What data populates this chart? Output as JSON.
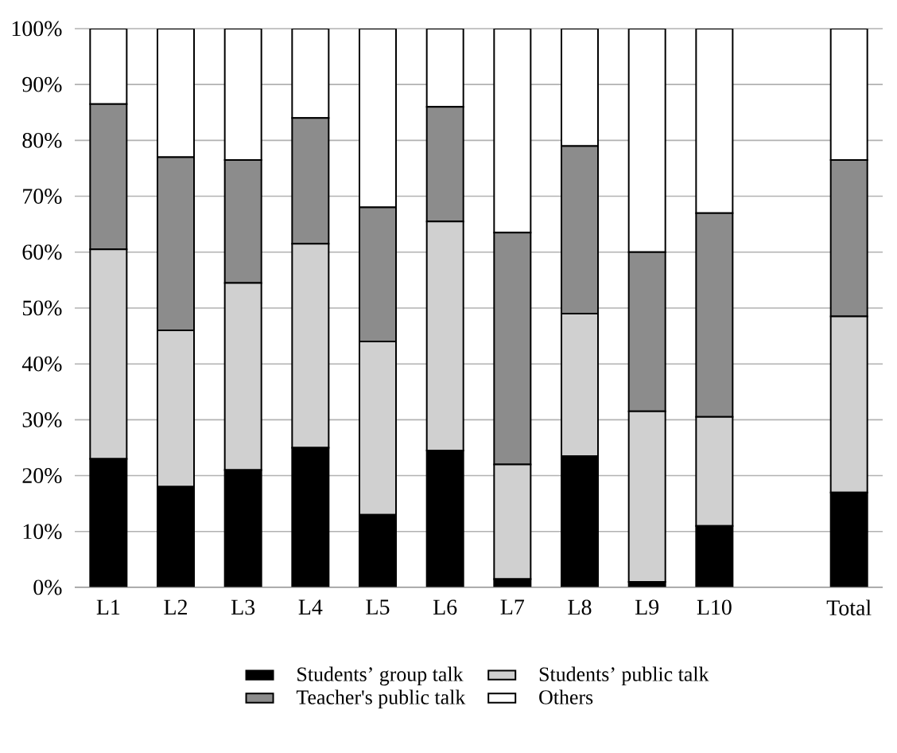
{
  "chart_data": {
    "type": "bar",
    "stacked": true,
    "categories": [
      "L1",
      "L2",
      "L3",
      "L4",
      "L5",
      "L6",
      "L7",
      "L8",
      "L9",
      "L10",
      null,
      "Total"
    ],
    "series": [
      {
        "name": "Students’ group talk",
        "color": "#000000",
        "values": [
          23,
          18,
          21,
          25,
          13,
          24.5,
          1.5,
          23.5,
          1,
          11,
          null,
          17
        ]
      },
      {
        "name": "Students’ public talk",
        "color": "#d0d0d0",
        "values": [
          37.5,
          28,
          33.5,
          36.5,
          31,
          41,
          20.5,
          25.5,
          30.5,
          19.5,
          null,
          31.5
        ]
      },
      {
        "name": "Teacher's public talk",
        "color": "#8c8c8c",
        "values": [
          26,
          31,
          22,
          22.5,
          24,
          20.5,
          41.5,
          30,
          28.5,
          36.5,
          null,
          28
        ]
      },
      {
        "name": "Others",
        "color": "#ffffff",
        "values": [
          13.5,
          23,
          23.5,
          16,
          32,
          14,
          36.5,
          21,
          40,
          33,
          null,
          23.5
        ]
      }
    ],
    "ylim": [
      0,
      100
    ],
    "yticks": [
      {
        "value": 0,
        "label": "0%"
      },
      {
        "value": 10,
        "label": "10%"
      },
      {
        "value": 20,
        "label": "20%"
      },
      {
        "value": 30,
        "label": "30%"
      },
      {
        "value": 40,
        "label": "40%"
      },
      {
        "value": 50,
        "label": "50%"
      },
      {
        "value": 60,
        "label": "60%"
      },
      {
        "value": 70,
        "label": "70%"
      },
      {
        "value": 80,
        "label": "80%"
      },
      {
        "value": 90,
        "label": "90%"
      },
      {
        "value": 100,
        "label": "100%"
      }
    ],
    "grid": "y",
    "legend": "bottom"
  }
}
